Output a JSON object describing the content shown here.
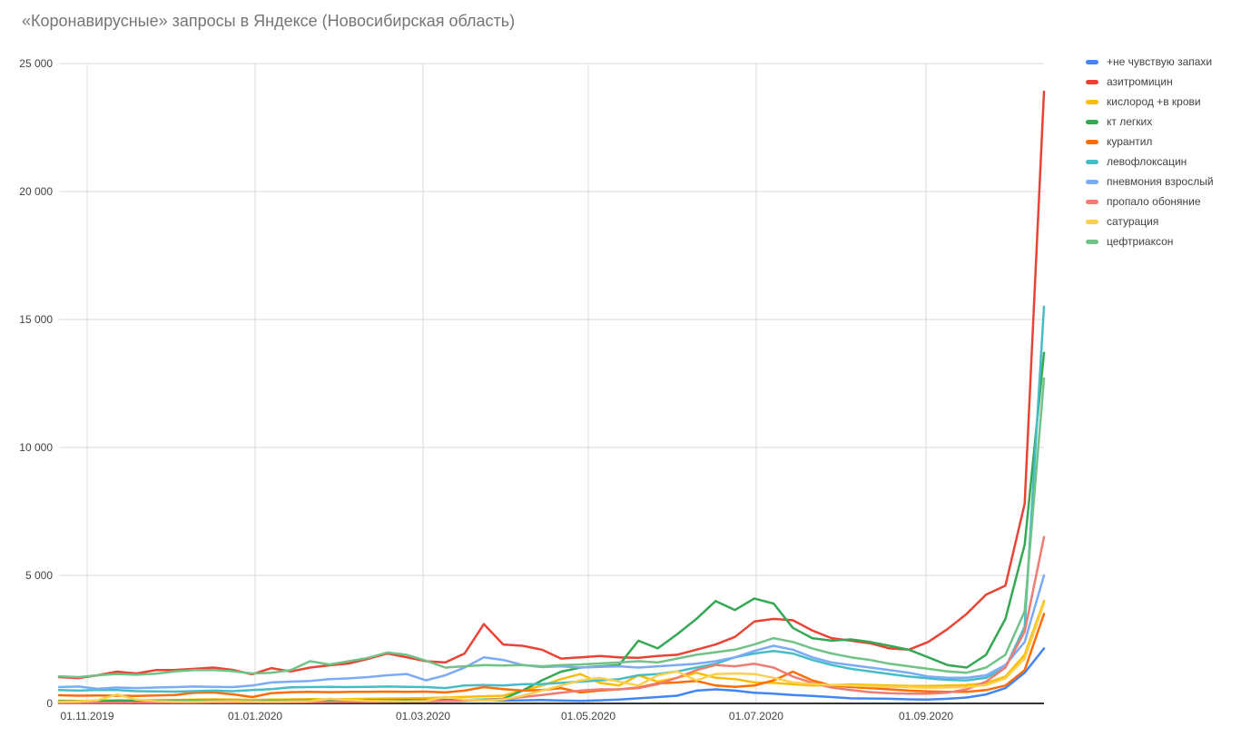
{
  "title": "«Коронавирусные» запросы в Яндексе (Новосибирская область)",
  "chart_data": {
    "type": "line",
    "title": "«Коронавирусные» запросы в Яндексе (Новосибирская область)",
    "grid": true,
    "legend_position": "right",
    "x_unit": "weeks",
    "x_axis": {
      "ticks": [
        {
          "label": "01.11.2019",
          "pos": 0.0286
        },
        {
          "label": "01.01.2020",
          "pos": 0.1991
        },
        {
          "label": "01.03.2020",
          "pos": 0.3696
        },
        {
          "label": "01.05.2020",
          "pos": 0.5373
        },
        {
          "label": "01.07.2020",
          "pos": 0.7078
        },
        {
          "label": "01.09.2020",
          "pos": 0.8802
        }
      ]
    },
    "y_axis": {
      "min": 0,
      "max": 25000,
      "ticks": [
        {
          "label": "0",
          "value": 0
        },
        {
          "label": "5 000",
          "value": 5000
        },
        {
          "label": "10 000",
          "value": 10000
        },
        {
          "label": "15 000",
          "value": 15000
        },
        {
          "label": "20 000",
          "value": 20000
        },
        {
          "label": "25 000",
          "value": 25000
        }
      ]
    },
    "colors": {
      "grid": "#dadada",
      "axis": "#333333",
      "axis_label": "#424242",
      "title": "#757575"
    },
    "series": [
      {
        "name": "+не чувствую запахи",
        "color": "#4285F4",
        "values": [
          25,
          25,
          30,
          30,
          35,
          35,
          40,
          45,
          50,
          50,
          55,
          55,
          60,
          65,
          70,
          70,
          75,
          80,
          85,
          90,
          100,
          110,
          130,
          110,
          120,
          130,
          110,
          100,
          120,
          150,
          200,
          250,
          300,
          500,
          550,
          500,
          420,
          380,
          330,
          290,
          250,
          200,
          190,
          180,
          160,
          150,
          180,
          230,
          350,
          600,
          1200,
          2150
        ]
      },
      {
        "name": "азитромицин",
        "color": "#EA4335",
        "values": [
          1030,
          990,
          1100,
          1240,
          1170,
          1300,
          1310,
          1350,
          1400,
          1310,
          1140,
          1380,
          1250,
          1400,
          1490,
          1560,
          1740,
          1950,
          1800,
          1650,
          1600,
          1950,
          3100,
          2300,
          2250,
          2100,
          1750,
          1800,
          1850,
          1800,
          1780,
          1850,
          1900,
          2100,
          2300,
          2600,
          3200,
          3300,
          3250,
          2850,
          2550,
          2450,
          2350,
          2150,
          2100,
          2400,
          2900,
          3500,
          4250,
          4600,
          7800,
          23900
        ]
      },
      {
        "name": "кислород +в крови",
        "color": "#FBBC04",
        "values": [
          110,
          100,
          110,
          130,
          120,
          130,
          140,
          150,
          160,
          150,
          140,
          150,
          160,
          170,
          160,
          170,
          180,
          190,
          200,
          210,
          230,
          260,
          280,
          300,
          500,
          700,
          950,
          1150,
          800,
          700,
          1100,
          850,
          1000,
          1200,
          1000,
          950,
          820,
          800,
          750,
          700,
          720,
          740,
          720,
          700,
          680,
          680,
          700,
          720,
          790,
          1050,
          1900,
          4000
        ]
      },
      {
        "name": "кт легких",
        "color": "#34A853",
        "values": [
          90,
          80,
          90,
          100,
          95,
          100,
          105,
          110,
          115,
          110,
          100,
          105,
          110,
          115,
          110,
          115,
          120,
          125,
          130,
          120,
          130,
          140,
          150,
          180,
          500,
          900,
          1240,
          1400,
          1450,
          1500,
          2450,
          2150,
          2700,
          3300,
          4000,
          3650,
          4100,
          3900,
          2950,
          2550,
          2450,
          2500,
          2400,
          2250,
          2100,
          1800,
          1500,
          1400,
          1900,
          3300,
          6200,
          13700
        ]
      },
      {
        "name": "курантил",
        "color": "#FF6D01",
        "values": [
          320,
          300,
          310,
          300,
          290,
          310,
          330,
          420,
          430,
          355,
          250,
          400,
          440,
          450,
          440,
          450,
          450,
          460,
          450,
          460,
          430,
          500,
          640,
          560,
          500,
          520,
          600,
          430,
          500,
          550,
          620,
          780,
          820,
          880,
          700,
          650,
          700,
          900,
          1240,
          900,
          700,
          640,
          600,
          550,
          500,
          470,
          450,
          450,
          520,
          700,
          1300,
          3500
        ]
      },
      {
        "name": "левофлоксацин",
        "color": "#46BDC6",
        "values": [
          520,
          500,
          530,
          520,
          480,
          470,
          460,
          480,
          500,
          480,
          520,
          560,
          630,
          640,
          650,
          640,
          650,
          660,
          650,
          640,
          600,
          700,
          720,
          700,
          750,
          760,
          800,
          850,
          900,
          950,
          1100,
          1150,
          1250,
          1400,
          1550,
          1800,
          1950,
          2050,
          1950,
          1700,
          1500,
          1350,
          1250,
          1150,
          1050,
          980,
          920,
          900,
          1000,
          1400,
          3000,
          15500
        ]
      },
      {
        "name": "пневмония взрослый",
        "color": "#7BAAF7",
        "values": [
          640,
          660,
          570,
          620,
          600,
          620,
          640,
          660,
          650,
          640,
          700,
          820,
          850,
          880,
          950,
          980,
          1030,
          1100,
          1150,
          900,
          1100,
          1400,
          1800,
          1700,
          1500,
          1420,
          1450,
          1400,
          1430,
          1450,
          1400,
          1450,
          1500,
          1550,
          1650,
          1800,
          2050,
          2250,
          2100,
          1800,
          1600,
          1500,
          1400,
          1300,
          1200,
          1050,
          1000,
          1000,
          1100,
          1500,
          2400,
          5000
        ]
      },
      {
        "name": "пропало обоняние",
        "color": "#F07B72",
        "values": [
          15,
          15,
          20,
          20,
          25,
          25,
          30,
          30,
          35,
          35,
          40,
          40,
          45,
          50,
          55,
          60,
          65,
          70,
          80,
          90,
          100,
          110,
          130,
          170,
          250,
          330,
          420,
          500,
          550,
          550,
          600,
          750,
          1000,
          1300,
          1500,
          1450,
          1550,
          1400,
          1050,
          800,
          620,
          520,
          440,
          400,
          380,
          380,
          420,
          550,
          850,
          1400,
          2800,
          6500
        ]
      },
      {
        "name": "сатурация",
        "color": "#FCD04F",
        "values": [
          60,
          70,
          120,
          350,
          150,
          90,
          70,
          70,
          80,
          90,
          80,
          70,
          80,
          90,
          180,
          140,
          100,
          90,
          80,
          90,
          260,
          150,
          110,
          150,
          300,
          500,
          700,
          900,
          1000,
          850,
          700,
          1100,
          1250,
          900,
          1150,
          1170,
          1150,
          1000,
          820,
          760,
          720,
          700,
          670,
          650,
          630,
          610,
          620,
          640,
          720,
          980,
          1750,
          3900
        ]
      },
      {
        "name": "цефтриаксон",
        "color": "#71C287",
        "values": [
          1060,
          1030,
          1100,
          1150,
          1120,
          1160,
          1250,
          1300,
          1310,
          1260,
          1170,
          1200,
          1300,
          1650,
          1520,
          1650,
          1780,
          1990,
          1900,
          1670,
          1400,
          1450,
          1500,
          1480,
          1500,
          1450,
          1500,
          1520,
          1560,
          1600,
          1650,
          1600,
          1750,
          1900,
          2000,
          2100,
          2300,
          2550,
          2400,
          2150,
          1950,
          1800,
          1700,
          1550,
          1450,
          1350,
          1250,
          1200,
          1400,
          1900,
          3600,
          12700
        ]
      }
    ]
  }
}
